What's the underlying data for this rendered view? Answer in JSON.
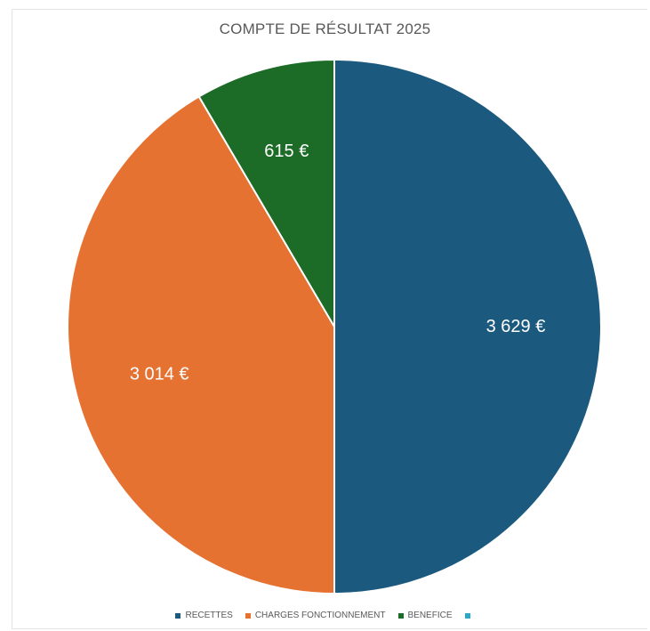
{
  "chart_data": {
    "type": "pie",
    "title": "COMPTE DE RÉSULTAT 2025",
    "categories": [
      "RECETTES",
      "CHARGES FONCTIONNEMENT",
      "BENEFICE",
      ""
    ],
    "values": [
      3629,
      3014,
      615,
      0
    ],
    "value_labels": [
      "3 629 €",
      "3 014 €",
      "615 €",
      ""
    ],
    "colors": [
      "#1b5a7e",
      "#e67232",
      "#1c6b27",
      "#2aa7c9"
    ],
    "start_angle_deg": 0,
    "direction": "clockwise",
    "legend_position": "bottom"
  }
}
